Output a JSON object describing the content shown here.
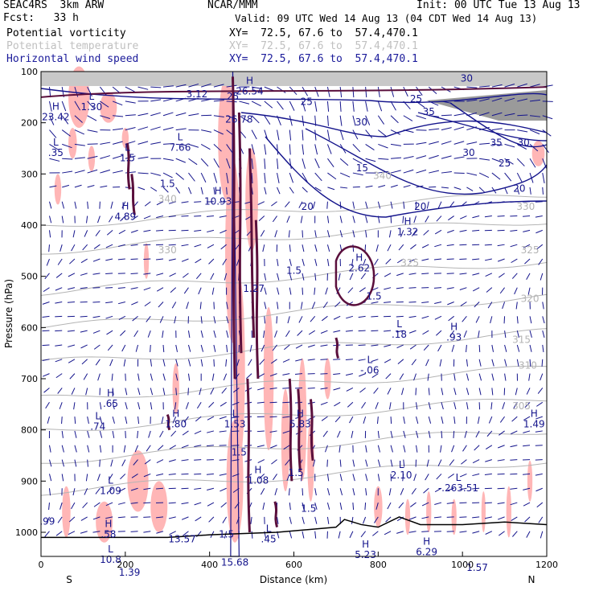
{
  "header": {
    "model": "SEAC4RS  3km ARW",
    "fcst": "Fcst:   33 h",
    "org": "NCAR/MMM",
    "init": "Init: 00 UTC Tue 13 Aug 13",
    "valid": "Valid: 09 UTC Wed 14 Aug 13 (04 CDT Wed 14 Aug 13)",
    "field1_name": "Potential vorticity",
    "field1_xy": "XY=  72.5, 67.6 to  57.4,470.1",
    "field2_name": "Potential temperature",
    "field2_xy": "XY=  72.5, 67.6 to  57.4,470.1",
    "field3_name": "Horizontal wind speed",
    "field3_xy": "XY=  72.5, 67.6 to  57.4,470.1"
  },
  "colors": {
    "pv_pos": "#5a0f3c",
    "pv_shade": "#ffb6b6",
    "theta": "#b4b4b4",
    "wind": "#14148c",
    "terrain": "#000000"
  },
  "chart_data": {
    "type": "cross-section",
    "xlabel": "Distance (km)",
    "ylabel": "Pressure (hPa)",
    "xlim": [
      0,
      1200
    ],
    "ylim": [
      1000,
      100
    ],
    "x_ticks": [
      "0",
      "200",
      "400",
      "600",
      "800",
      "1000",
      "1200"
    ],
    "y_ticks": [
      "100",
      "200",
      "300",
      "400",
      "500",
      "600",
      "700",
      "800",
      "900",
      "1000"
    ],
    "x_end_labels": {
      "left": "S",
      "right": "N"
    },
    "theta_labels": [
      {
        "text": "340",
        "x": 300,
        "p": 355
      },
      {
        "text": "330",
        "x": 300,
        "p": 455
      },
      {
        "text": "330",
        "x": 1150,
        "p": 370
      },
      {
        "text": "325",
        "x": 875,
        "p": 480
      },
      {
        "text": "325",
        "x": 1160,
        "p": 455
      },
      {
        "text": "320",
        "x": 1160,
        "p": 550
      },
      {
        "text": "315",
        "x": 1140,
        "p": 630
      },
      {
        "text": "310",
        "x": 1155,
        "p": 680
      },
      {
        "text": "305",
        "x": 1140,
        "p": 760
      },
      {
        "text": "340",
        "x": 810,
        "p": 310
      }
    ],
    "wind_labels": [
      {
        "text": "30",
        "x": 1010,
        "p": 120
      },
      {
        "text": "25",
        "x": 630,
        "p": 165
      },
      {
        "text": "25",
        "x": 890,
        "p": 160
      },
      {
        "text": "30",
        "x": 760,
        "p": 205
      },
      {
        "text": "35",
        "x": 920,
        "p": 185
      },
      {
        "text": "35",
        "x": 1080,
        "p": 245
      },
      {
        "text": "30",
        "x": 1015,
        "p": 265
      },
      {
        "text": "25",
        "x": 1100,
        "p": 285
      },
      {
        "text": "30",
        "x": 1145,
        "p": 245
      },
      {
        "text": "20",
        "x": 1135,
        "p": 335
      },
      {
        "text": "15",
        "x": 762,
        "p": 295
      },
      {
        "text": "20",
        "x": 632,
        "p": 370
      },
      {
        "text": "20",
        "x": 900,
        "p": 370
      },
      {
        "text": "25",
        "x": 455,
        "p": 155
      }
    ],
    "pv_extrema": [
      {
        "type": "H",
        "value": "23.42",
        "x": 35,
        "p": 195
      },
      {
        "type": "L",
        "value": "1.30",
        "x": 120,
        "p": 175
      },
      {
        "type": "L",
        "value": ".35",
        "x": 35,
        "p": 265
      },
      {
        "type": "L",
        "value": "1.5",
        "x": 205,
        "p": 275
      },
      {
        "type": "L",
        "value": "7.66",
        "x": 330,
        "p": 255
      },
      {
        "type": "",
        "value": "1.5",
        "x": 300,
        "p": 325
      },
      {
        "type": "",
        "value": "3.12",
        "x": 370,
        "p": 150
      },
      {
        "type": "H",
        "value": "10.93",
        "x": 420,
        "p": 360
      },
      {
        "type": "H",
        "value": "26.54",
        "x": 495,
        "p": 145
      },
      {
        "type": "",
        "value": "26.78",
        "x": 470,
        "p": 200
      },
      {
        "type": "H",
        "value": "4.89",
        "x": 200,
        "p": 390
      },
      {
        "type": "",
        "value": "1.5",
        "x": 600,
        "p": 495
      },
      {
        "type": "",
        "value": "1.27",
        "x": 505,
        "p": 530
      },
      {
        "type": "H",
        "value": "1.32",
        "x": 870,
        "p": 420
      },
      {
        "type": "H",
        "value": "2.62",
        "x": 755,
        "p": 490
      },
      {
        "type": "",
        "value": "1.5",
        "x": 790,
        "p": 545
      },
      {
        "type": "L",
        "value": ".18",
        "x": 850,
        "p": 620
      },
      {
        "type": "H",
        "value": ".93",
        "x": 980,
        "p": 625
      },
      {
        "type": "L",
        "value": "-.06",
        "x": 780,
        "p": 690
      },
      {
        "type": "H",
        "value": ".65",
        "x": 165,
        "p": 755
      },
      {
        "type": "L",
        "value": ".74",
        "x": 135,
        "p": 800
      },
      {
        "type": "H",
        "value": "1.80",
        "x": 320,
        "p": 795
      },
      {
        "type": "L",
        "value": "1.53",
        "x": 460,
        "p": 795
      },
      {
        "type": "H",
        "value": "5.83",
        "x": 615,
        "p": 795
      },
      {
        "type": "",
        "value": "1.5",
        "x": 470,
        "p": 850
      },
      {
        "type": "H",
        "value": "1.08",
        "x": 515,
        "p": 905
      },
      {
        "type": "",
        "value": "1.5",
        "x": 605,
        "p": 890
      },
      {
        "type": "H",
        "value": "1.49",
        "x": 1170,
        "p": 795
      },
      {
        "type": "L",
        "value": "1.09",
        "x": 165,
        "p": 925
      },
      {
        "type": "L",
        "value": "2.10",
        "x": 855,
        "p": 895
      },
      {
        "type": "L",
        "value": "-.263.51",
        "x": 990,
        "p": 920
      },
      {
        "type": "",
        "value": "1.5",
        "x": 635,
        "p": 960
      },
      {
        "type": "",
        "value": ".99",
        "x": 15,
        "p": 985
      },
      {
        "type": "H",
        "value": ".58",
        "x": 160,
        "p": 1010
      },
      {
        "type": "",
        "value": "13.57",
        "x": 335,
        "p": 1020
      },
      {
        "type": "",
        "value": "1.5",
        "x": 440,
        "p": 1010
      },
      {
        "type": "L",
        "value": ".45",
        "x": 540,
        "p": 1020
      },
      {
        "type": "H",
        "value": "5.23",
        "x": 770,
        "p": 1050
      },
      {
        "type": "H",
        "value": "6.29",
        "x": 915,
        "p": 1045
      },
      {
        "type": "L",
        "value": "10.8",
        "x": 165,
        "p": 1060
      },
      {
        "type": "",
        "value": "15.68",
        "x": 460,
        "p": 1065
      },
      {
        "type": "",
        "value": "1.39",
        "x": 210,
        "p": 1085
      },
      {
        "type": "",
        "value": "1.57",
        "x": 1035,
        "p": 1075
      }
    ]
  }
}
